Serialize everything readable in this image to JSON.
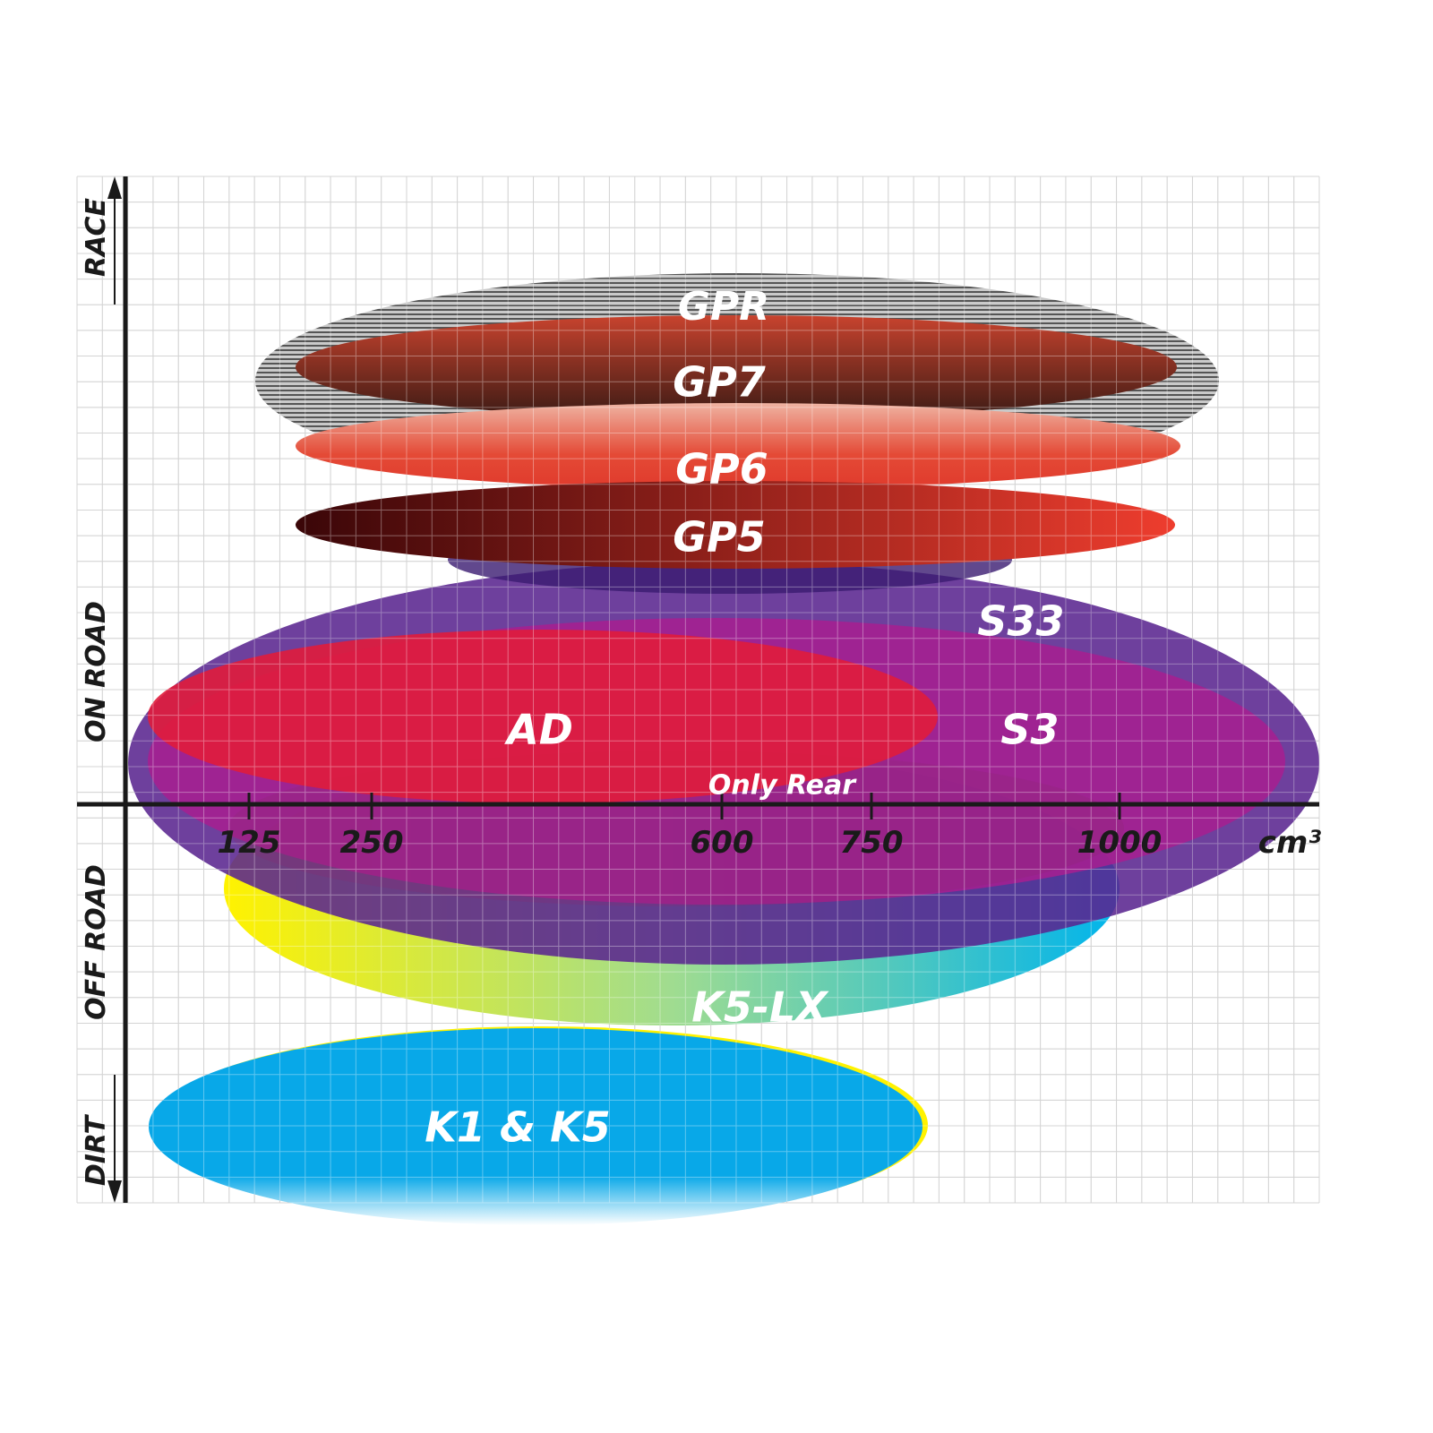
{
  "chart_data": {
    "type": "diagram-ellipse-ranges",
    "xlabel": "cm³",
    "x_ticks": [
      "125",
      "250",
      "600",
      "750",
      "1000"
    ],
    "y_categories": [
      "RACE",
      "ON ROAD",
      "OFF ROAD",
      "DIRT"
    ],
    "grid": true,
    "products": [
      {
        "name": "GPR",
        "x_range": [
          60,
          1100
        ],
        "colors": [
          "#9a9a9a",
          "#3a3a3a"
        ]
      },
      {
        "name": "GP7",
        "x_range": [
          250,
          1050
        ],
        "colors": [
          "#c8432e",
          "#3a1a14"
        ]
      },
      {
        "name": "GP6",
        "x_range": [
          250,
          1050
        ],
        "colors": [
          "#efb3a2",
          "#e03a2c"
        ]
      },
      {
        "name": "GP5",
        "x_range": [
          250,
          1040
        ],
        "colors": [
          "#3a0608",
          "#ee3d2e"
        ]
      },
      {
        "name": "S33",
        "x_range": [
          5,
          1200
        ],
        "colors": [
          "#5a2590"
        ]
      },
      {
        "name": "S3",
        "x_range": [
          25,
          1165
        ],
        "colors": [
          "#a81e90"
        ]
      },
      {
        "name": "AD",
        "x_range": [
          25,
          780
        ],
        "colors": [
          "#e01c3c"
        ]
      },
      {
        "name": "Only Rear",
        "x_range": [
          200,
          1000
        ],
        "colors": [
          "#8a2870"
        ]
      },
      {
        "name": "K5-LX",
        "x_range": [
          100,
          1000
        ],
        "colors": [
          "#fff200",
          "#00b4ec"
        ]
      },
      {
        "name": "K1 & K5",
        "x_range": [
          25,
          800
        ],
        "colors": [
          "#08a8e8",
          "#fff200"
        ]
      }
    ]
  }
}
